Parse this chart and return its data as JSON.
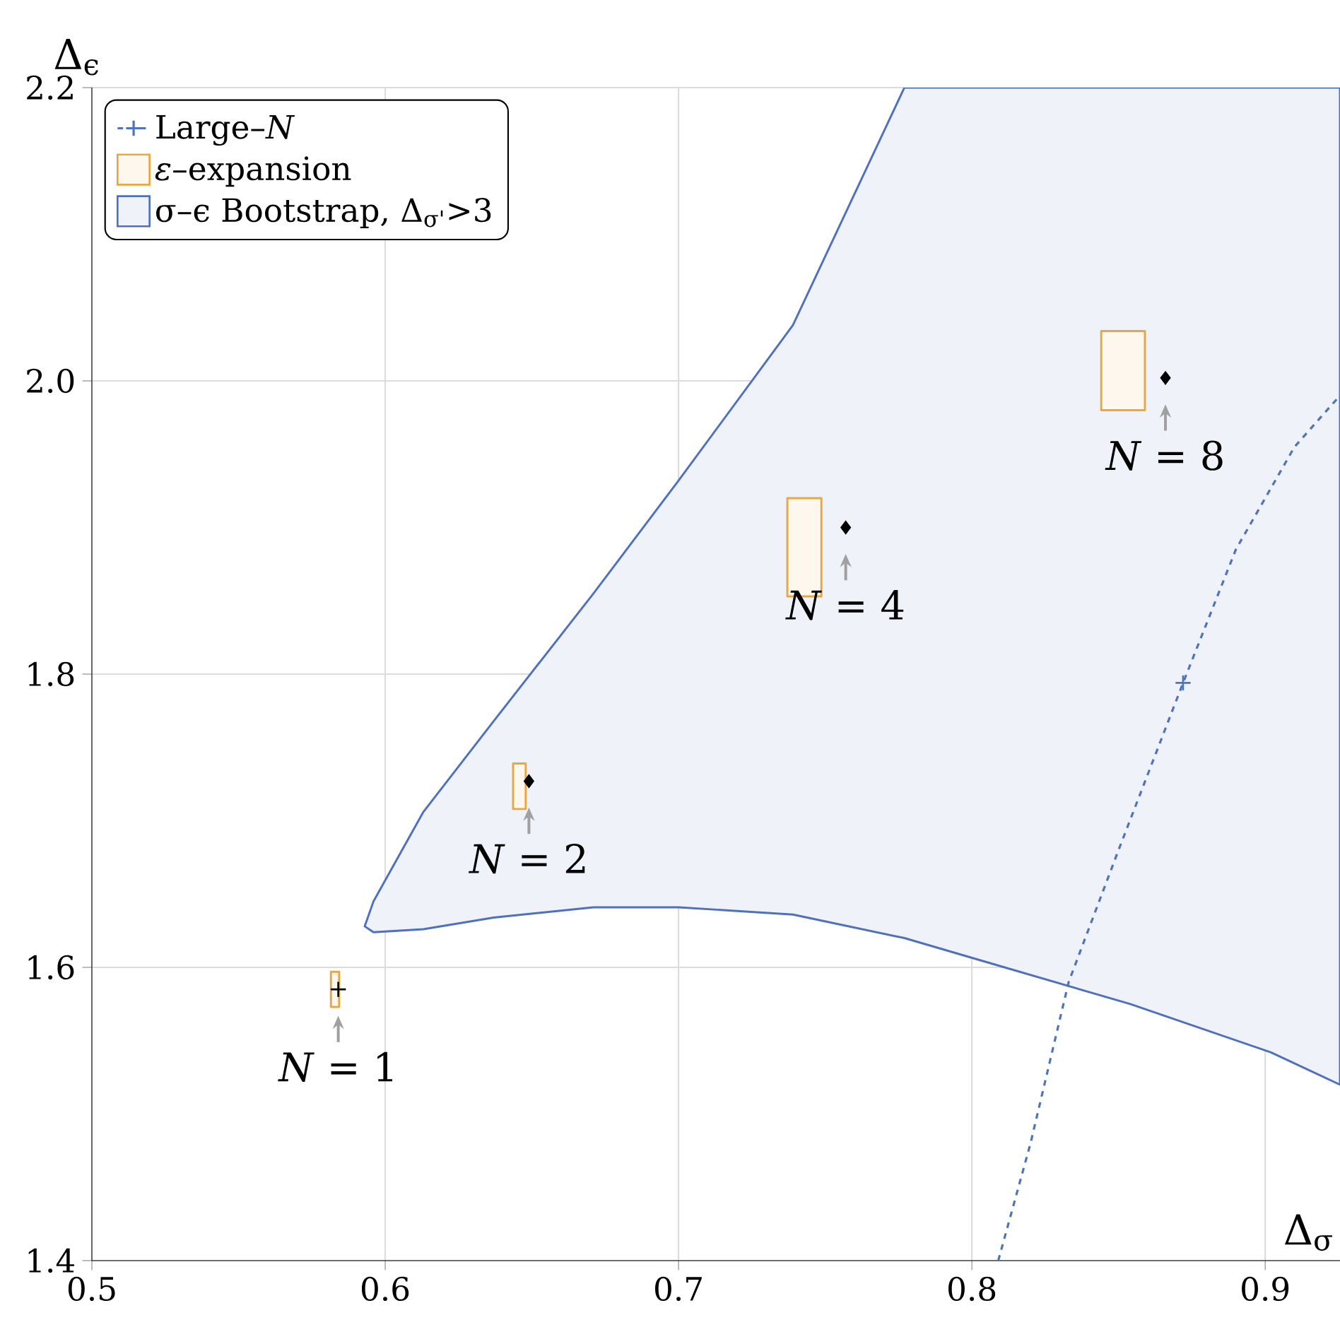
{
  "chart_data": {
    "type": "line",
    "xlabel": "Δ$_{σ}$",
    "ylabel": "Δ$_{ϵ}$",
    "xlim": [
      0.5,
      0.9255
    ],
    "ylim": [
      1.4,
      2.2
    ],
    "xticks": [
      0.5,
      0.6,
      0.7,
      0.8,
      0.9
    ],
    "yticks": [
      1.4,
      1.6,
      1.8,
      {
        "value": 2.0,
        "label": "2.0"
      },
      2.2
    ],
    "grid": true,
    "legend": "top left",
    "series": [
      {
        "name": "Large–*N*",
        "color": "#4f74b8",
        "line_style": "dashed",
        "x": [
          0.809,
          0.82,
          0.833,
          0.85,
          0.872,
          0.89,
          0.91,
          0.9255
        ],
        "values": [
          1.4,
          1.48,
          1.59,
          1.68,
          1.794,
          1.885,
          1.955,
          1.99
        ]
      },
      {
        "type": "scatter",
        "marker": "cross",
        "color": "#4f74b8",
        "x": [
          0.872
        ],
        "values": [
          1.794
        ]
      },
      {
        "name": "*ε*–expansion",
        "type": "area",
        "color": "#fdf7ee",
        "x": [
          0.5815,
          0.5843,
          0.5843,
          0.5815
        ],
        "values": [
          1.597,
          1.597,
          1.573,
          1.573
        ]
      },
      {
        "type": "area",
        "color": "#fdf7ee",
        "x": [
          0.6436,
          0.6479,
          0.6479,
          0.6436
        ],
        "values": [
          1.739,
          1.739,
          1.708,
          1.708
        ]
      },
      {
        "type": "area",
        "color": "#fdf7ee",
        "x": [
          0.7371,
          0.7487,
          0.7487,
          0.7371
        ],
        "values": [
          1.92,
          1.92,
          1.853,
          1.853
        ]
      },
      {
        "type": "area",
        "color": "#fdf7ee",
        "x": [
          0.8441,
          0.859,
          0.859,
          0.8441
        ],
        "values": [
          2.034,
          2.034,
          1.98,
          1.98
        ]
      },
      {
        "name": "σ–ϵ Bootstrap, Δ$_{σ'}$>3",
        "type": "area",
        "color": "#eff2f9",
        "x": [
          0.593,
          0.596,
          0.613,
          0.637,
          0.671,
          0.7,
          0.739,
          0.777,
          0.9255,
          0.9255,
          0.902,
          0.854,
          0.806,
          0.777,
          0.739,
          0.7,
          0.671,
          0.637,
          0.613,
          0.596
        ],
        "values": [
          1.628,
          1.645,
          1.706,
          1.768,
          1.855,
          1.932,
          2.038,
          2.2,
          2.2,
          1.52,
          1.542,
          1.575,
          1.603,
          1.62,
          1.636,
          1.641,
          1.641,
          1.634,
          1.626,
          1.624
        ]
      },
      {
        "type": "scatter",
        "marker": "cross",
        "color": "#000000",
        "x": [
          0.584
        ],
        "values": [
          1.585
        ]
      },
      {
        "type": "scatter",
        "marker": "diamond",
        "color": "#000000",
        "x": [
          0.649,
          0.757,
          0.866
        ],
        "values": [
          1.727,
          1.9,
          2.002
        ]
      }
    ],
    "annotations": [
      "*N* = 1",
      "*N* = 2",
      "*N* = 4",
      "*N* = 8"
    ]
  }
}
